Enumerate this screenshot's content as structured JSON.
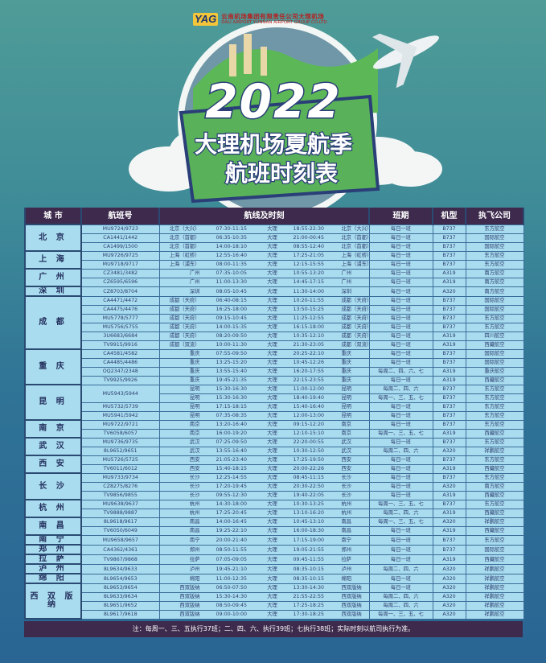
{
  "logo": {
    "mark": "YAG",
    "name_cn": "云南机场集团有限责任公司大理机场",
    "name_en": "DALI AIRPORT YUNNAN AIRPORT GROUP CO.LTD"
  },
  "title": {
    "year": "2022",
    "line1": "大理机场夏航季",
    "line2": "航班时刻表"
  },
  "colors": {
    "header_bg": "#3d2a4c",
    "cell_bg": "#a9dcef",
    "border": "#2a4a72",
    "page_top": "#4f9c98",
    "page_bottom": "#2a6594"
  },
  "table": {
    "headers": [
      "城 市",
      "航班号",
      "航线及时刻",
      "班期",
      "机型",
      "执飞公司"
    ],
    "groups": [
      {
        "city": "北 京",
        "rows": [
          {
            "flight": "MU9724/9723",
            "from": "北京（大兴）",
            "t1": "07:30-11:15",
            "via": "大理",
            "t2": "18:55-22:30",
            "to": "北京（大兴）",
            "schedule": "每日一班",
            "type": "B737",
            "airline": "东方航空"
          },
          {
            "flight": "CA1441/1442",
            "from": "北京（首都）",
            "t1": "06:35-10:35",
            "via": "大理",
            "t2": "21:00-00:45",
            "to": "北京（首都）",
            "schedule": "每日一班",
            "type": "B737",
            "airline": "国际航空"
          },
          {
            "flight": "CA1499/1500",
            "from": "北京（首都）",
            "t1": "14:00-18:10",
            "via": "大理",
            "t2": "08:55-12:40",
            "to": "北京（首都）",
            "schedule": "每日一班",
            "type": "B737",
            "airline": "国际航空"
          }
        ]
      },
      {
        "city": "上 海",
        "rows": [
          {
            "flight": "MU9726/9725",
            "from": "上海（虹桥）",
            "t1": "12:55-16:40",
            "via": "大理",
            "t2": "17:25-21:05",
            "to": "上海（虹桥）",
            "schedule": "每日一班",
            "type": "B737",
            "airline": "东方航空"
          },
          {
            "flight": "MU9718/9717",
            "from": "上海（浦东）",
            "t1": "08:00-11:35",
            "via": "大理",
            "t2": "12:15-15:55",
            "to": "上海（浦东）",
            "schedule": "每日一班",
            "type": "B737",
            "airline": "东方航空"
          }
        ]
      },
      {
        "city": "广 州",
        "rows": [
          {
            "flight": "CZ3481/3482",
            "from": "广州",
            "t1": "07:35-10:05",
            "via": "大理",
            "t2": "10:55-13:20",
            "to": "广州",
            "schedule": "每日一班",
            "type": "A319",
            "airline": "南方航空"
          },
          {
            "flight": "CZ6595/6596",
            "from": "广州",
            "t1": "11:00-13:30",
            "via": "大理",
            "t2": "14:45-17:15",
            "to": "广州",
            "schedule": "每日一班",
            "type": "A319",
            "airline": "南方航空"
          }
        ]
      },
      {
        "city": "深 圳",
        "rows": [
          {
            "flight": "CZ8703/8704",
            "from": "深圳",
            "t1": "08:05-10:45",
            "via": "大理",
            "t2": "11:30-14:00",
            "to": "深圳",
            "schedule": "每日一班",
            "type": "A320",
            "airline": "南方航空"
          }
        ]
      },
      {
        "city": "成 都",
        "rows": [
          {
            "flight": "CA4471/4472",
            "from": "成都（天府）",
            "t1": "06:40-08:15",
            "via": "大理",
            "t2": "10:20-11:55",
            "to": "成都（天府）",
            "schedule": "每日一班",
            "type": "B737",
            "airline": "国际航空"
          },
          {
            "flight": "CA4475/4476",
            "from": "成都（天府）",
            "t1": "16:25-18:00",
            "via": "大理",
            "t2": "13:50-15:25",
            "to": "成都（天府）",
            "schedule": "每日一班",
            "type": "B737",
            "airline": "国际航空"
          },
          {
            "flight": "MU5778/5777",
            "from": "成都（天府）",
            "t1": "09:15-10:45",
            "via": "大理",
            "t2": "11:25-12:55",
            "to": "成都（天府）",
            "schedule": "每日一班",
            "type": "B737",
            "airline": "东方航空"
          },
          {
            "flight": "MU5756/5755",
            "from": "成都（天府）",
            "t1": "14:00-15:35",
            "via": "大理",
            "t2": "16:15-18:00",
            "to": "成都（天府）",
            "schedule": "每日一班",
            "type": "B737",
            "airline": "东方航空"
          },
          {
            "flight": "3U6683/6684",
            "from": "成都（天府）",
            "t1": "08:20-09:50",
            "via": "大理",
            "t2": "10:35-12:10",
            "to": "成都（天府）",
            "schedule": "每日一班",
            "type": "A319",
            "airline": "四川航空"
          },
          {
            "flight": "TV9915/9916",
            "from": "成都（双流）",
            "t1": "10:00-11:30",
            "via": "大理",
            "t2": "21:30-23:05",
            "to": "成都（双流）",
            "schedule": "每日一班",
            "type": "A319",
            "airline": "西藏航空"
          }
        ]
      },
      {
        "city": "重 庆",
        "rows": [
          {
            "flight": "CA4581/4582",
            "from": "重庆",
            "t1": "07:55-09:50",
            "via": "大理",
            "t2": "20:25-22:10",
            "to": "重庆",
            "schedule": "每日一班",
            "type": "B737",
            "airline": "国际航空"
          },
          {
            "flight": "CA4485/4486",
            "from": "重庆",
            "t1": "13:25-15:20",
            "via": "大理",
            "t2": "10:45-12:26",
            "to": "重庆",
            "schedule": "每日一班",
            "type": "B737",
            "airline": "国际航空"
          },
          {
            "flight": "OQ2347/2348",
            "from": "重庆",
            "t1": "13:55-15:40",
            "via": "大理",
            "t2": "16:20-17:55",
            "to": "重庆",
            "schedule": "每周二、四、六、七",
            "type": "A319",
            "airline": "重庆航空"
          },
          {
            "flight": "TV9925/9926",
            "from": "重庆",
            "t1": "19:45-21:35",
            "via": "大理",
            "t2": "22:15-23:55",
            "to": "重庆",
            "schedule": "每日一班",
            "type": "A319",
            "airline": "西藏航空"
          }
        ]
      },
      {
        "city": "昆 明",
        "rows": [
          {
            "flight": "MU5943/5944",
            "span": 2,
            "from": "昆明",
            "t1": "15:30-16:30",
            "via": "大理",
            "t2": "11:00-12:00",
            "to": "昆明",
            "schedule": "每周二、四、六",
            "type": "B737",
            "airline": "东方航空"
          },
          {
            "flight": null,
            "from": "昆明",
            "t1": "15:30-16:30",
            "via": "大理",
            "t2": "18:40-19:40",
            "to": "昆明",
            "schedule": "每周一、三、五、七",
            "type": "B737",
            "airline": "东方航空"
          },
          {
            "flight": "MU5732/5739",
            "from": "昆明",
            "t1": "17:15-18:15",
            "via": "大理",
            "t2": "15:40-16:40",
            "to": "昆明",
            "schedule": "每日一班",
            "type": "B737",
            "airline": "东方航空"
          },
          {
            "flight": "MU5941/5942",
            "from": "昆明",
            "t1": "07:35-08:35",
            "via": "大理",
            "t2": "12:00-13:00",
            "to": "昆明",
            "schedule": "每日一班",
            "type": "B737",
            "airline": "东方航空"
          }
        ]
      },
      {
        "city": "南 京",
        "rows": [
          {
            "flight": "MU9722/9721",
            "from": "南京",
            "t1": "13:20-16:40",
            "via": "大理",
            "t2": "09:15-12:20",
            "to": "南京",
            "schedule": "每日一班",
            "type": "B737",
            "airline": "东方航空"
          },
          {
            "flight": "TV6058/6057",
            "from": "南京",
            "t1": "16:00-19:20",
            "via": "大理",
            "t2": "12:10-15:10",
            "to": "南京",
            "schedule": "每周一、三、五、七",
            "type": "A319",
            "airline": "西藏航空"
          }
        ]
      },
      {
        "city": "武 汉",
        "rows": [
          {
            "flight": "MU9736/9735",
            "from": "武汉",
            "t1": "07:25-09:50",
            "via": "大理",
            "t2": "22:20-00:55",
            "to": "武汉",
            "schedule": "每日一班",
            "type": "B737",
            "airline": "东方航空"
          },
          {
            "flight": "8L9652/9651",
            "from": "武汉",
            "t1": "13:55-16:40",
            "via": "大理",
            "t2": "10:30-12:50",
            "to": "武汉",
            "schedule": "每周二、四、六",
            "type": "A320",
            "airline": "祥鹏航空"
          }
        ]
      },
      {
        "city": "西 安",
        "rows": [
          {
            "flight": "MU5726/5725",
            "from": "西安",
            "t1": "21:05-23:40",
            "via": "大理",
            "t2": "17:25-19:50",
            "to": "西安",
            "schedule": "每日一班",
            "type": "B737",
            "airline": "东方航空"
          },
          {
            "flight": "TV6011/6012",
            "from": "西安",
            "t1": "15:40-18:15",
            "via": "大理",
            "t2": "20:00-22:26",
            "to": "西安",
            "schedule": "每日一班",
            "type": "A319",
            "airline": "西藏航空"
          }
        ]
      },
      {
        "city": "长 沙",
        "rows": [
          {
            "flight": "MU9733/9734",
            "from": "长沙",
            "t1": "12:25-14:55",
            "via": "大理",
            "t2": "08:45-11:15",
            "to": "长沙",
            "schedule": "每日一班",
            "type": "B737",
            "airline": "东方航空"
          },
          {
            "flight": "CZ8275/8276",
            "from": "长沙",
            "t1": "17:20-19:45",
            "via": "大理",
            "t2": "20:30-22:50",
            "to": "长沙",
            "schedule": "每日一班",
            "type": "A320",
            "airline": "南方航空"
          },
          {
            "flight": "TV9856/9855",
            "from": "长沙",
            "t1": "09:55-12:30",
            "via": "大理",
            "t2": "19:40-22:05",
            "to": "长沙",
            "schedule": "每日一班",
            "type": "A319",
            "airline": "西藏航空"
          }
        ]
      },
      {
        "city": "杭 州",
        "rows": [
          {
            "flight": "MU9638/9637",
            "from": "杭州",
            "t1": "14:30-18:00",
            "via": "大理",
            "t2": "10:30-13:25",
            "to": "杭州",
            "schedule": "每周一、三、五、七",
            "type": "B737",
            "airline": "东方航空"
          },
          {
            "flight": "TV9888/9887",
            "from": "杭州",
            "t1": "17:25-20:45",
            "via": "大理",
            "t2": "13:10-16:20",
            "to": "杭州",
            "schedule": "每周二、四、六",
            "type": "A319",
            "airline": "西藏航空"
          }
        ]
      },
      {
        "city": "南 昌",
        "rows": [
          {
            "flight": "8L9618/9617",
            "from": "南昌",
            "t1": "14:00-16:45",
            "via": "大理",
            "t2": "10:45-13:10",
            "to": "南昌",
            "schedule": "每周一、三、五、七",
            "type": "A320",
            "airline": "祥鹏航空"
          },
          {
            "flight": "TV6050/6049",
            "from": "南昌",
            "t1": "19:25-22:10",
            "via": "大理",
            "t2": "16:00-18:30",
            "to": "南昌",
            "schedule": "每日一班",
            "type": "A319",
            "airline": "西藏航空"
          }
        ]
      },
      {
        "city": "南 宁",
        "rows": [
          {
            "flight": "MU9658/9657",
            "from": "南宁",
            "t1": "20:00-21:40",
            "via": "大理",
            "t2": "17:15-19:00",
            "to": "南宁",
            "schedule": "每日一班",
            "type": "B737",
            "airline": "东方航空"
          }
        ]
      },
      {
        "city": "郑 州",
        "rows": [
          {
            "flight": "CA4362/4361",
            "from": "郑州",
            "t1": "08:50-11:55",
            "via": "大理",
            "t2": "19:05-21:55",
            "to": "郑州",
            "schedule": "每日一班",
            "type": "B737",
            "airline": "国际航空"
          }
        ]
      },
      {
        "city": "拉 萨",
        "rows": [
          {
            "flight": "TV9867/9868",
            "from": "拉萨",
            "t1": "07:05-09:05",
            "via": "大理",
            "t2": "09:45-11:55",
            "to": "拉萨",
            "schedule": "每日一班",
            "type": "A319",
            "airline": "西藏航空"
          }
        ]
      },
      {
        "city": "泸 州",
        "rows": [
          {
            "flight": "8L9634/9633",
            "from": "泸州",
            "t1": "19:45-21:10",
            "via": "大理",
            "t2": "08:35-10:15",
            "to": "泸州",
            "schedule": "每周二、四、六",
            "type": "A320",
            "airline": "祥鹏航空"
          }
        ]
      },
      {
        "city": "绵 阳",
        "rows": [
          {
            "flight": "8L9654/9653",
            "from": "绵阳",
            "t1": "11:00-12:35",
            "via": "大理",
            "t2": "08:35-10:15",
            "to": "绵阳",
            "schedule": "每日一班",
            "type": "A320",
            "airline": "祥鹏航空"
          }
        ]
      },
      {
        "city": "西 双 版 纳",
        "rows": [
          {
            "flight": "8L9653/9654",
            "from": "西双版纳",
            "t1": "06:50-07:50",
            "via": "大理",
            "t2": "13:30-14:30",
            "to": "西双版纳",
            "schedule": "每日一班",
            "type": "A320",
            "airline": "祥鹏航空"
          },
          {
            "flight": "8L9633/9634",
            "from": "西双版纳",
            "t1": "15:30-14:30",
            "via": "大理",
            "t2": "21:55-22:55",
            "to": "西双版纳",
            "schedule": "每周二、四、六",
            "type": "A320",
            "airline": "祥鹏航空"
          },
          {
            "flight": "8L9651/9652",
            "from": "西双版纳",
            "t1": "08:50-09:45",
            "via": "大理",
            "t2": "17:25-18:25",
            "to": "西双版纳",
            "schedule": "每周二、四、六",
            "type": "A320",
            "airline": "祥鹏航空"
          },
          {
            "flight": "8L9617/9618",
            "from": "西双版纳",
            "t1": "09:00-10:00",
            "via": "大理",
            "t2": "17:30-18:25",
            "to": "西双版纳",
            "schedule": "每周一、三、五、七",
            "type": "A320",
            "airline": "祥鹏航空"
          }
        ]
      }
    ]
  },
  "note": "注：每周一、三、五执行37班；二、四、六、执行39班；七执行38班；实际时刻以航司执行为准。"
}
